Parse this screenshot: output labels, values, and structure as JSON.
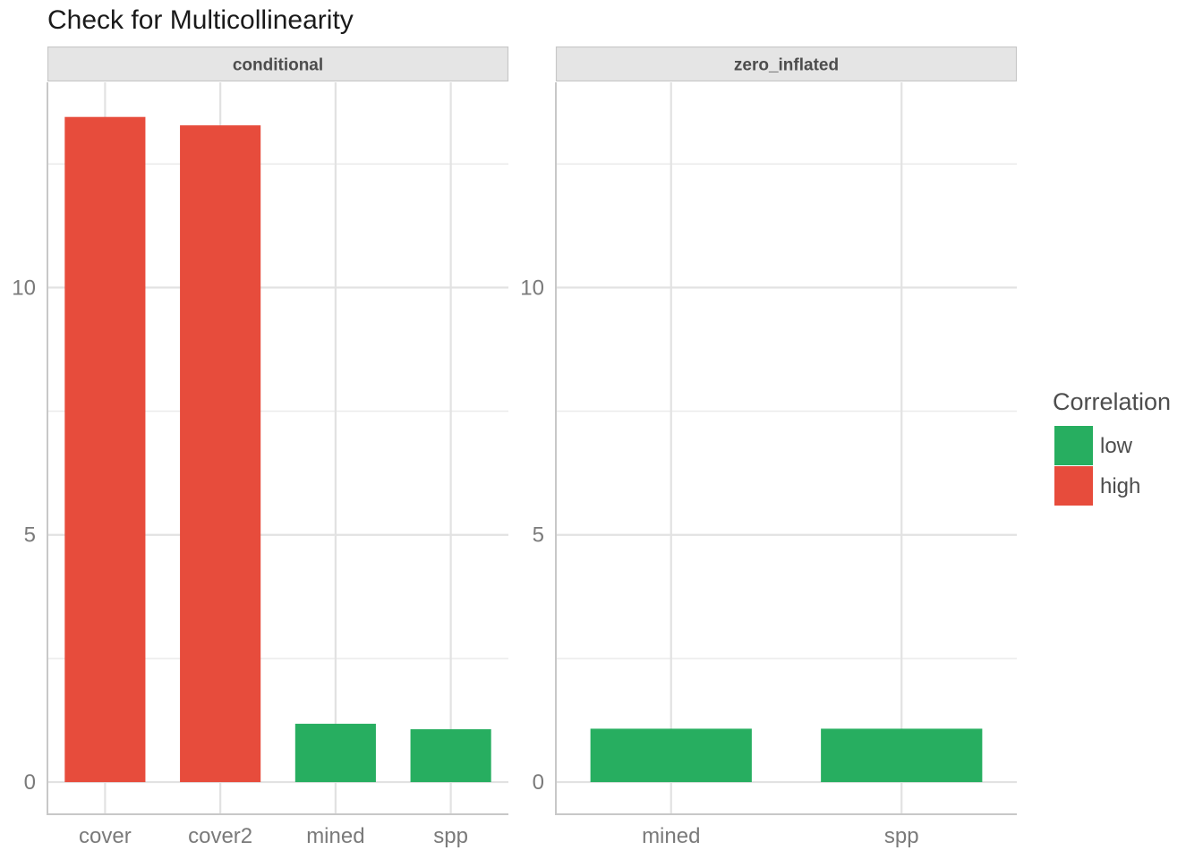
{
  "title": "Check for Multicollinearity",
  "colors": {
    "low": "#27AE60",
    "high": "#E74C3C"
  },
  "legend": {
    "title": "Correlation",
    "items": [
      {
        "label": "low",
        "color": "#27AE60"
      },
      {
        "label": "high",
        "color": "#E74C3C"
      }
    ]
  },
  "chart_data": {
    "type": "bar",
    "title": "Check for Multicollinearity",
    "ylim": [
      -0.65,
      14.15
    ],
    "yticks": [
      0,
      5,
      10
    ],
    "grid": true,
    "legend_position": "right",
    "panels": [
      {
        "name": "conditional",
        "categories": [
          "cover",
          "cover2",
          "mined",
          "spp"
        ],
        "values": [
          13.45,
          13.28,
          1.18,
          1.07
        ],
        "correlation": [
          "high",
          "high",
          "low",
          "low"
        ]
      },
      {
        "name": "zero_inflated",
        "categories": [
          "mined",
          "spp"
        ],
        "values": [
          1.08,
          1.08
        ],
        "correlation": [
          "low",
          "low"
        ]
      }
    ]
  }
}
